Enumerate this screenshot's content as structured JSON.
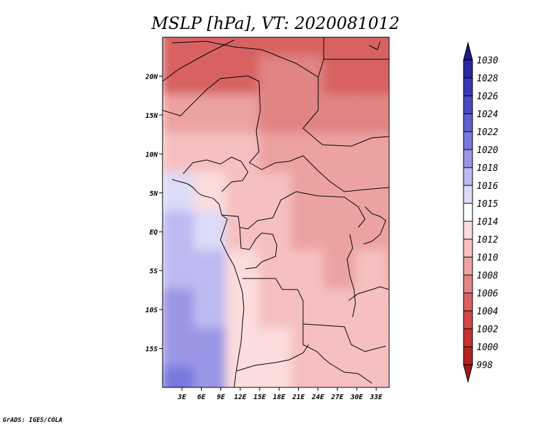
{
  "chart_data": {
    "type": "heatmap",
    "title": "MSLP [hPa], VT: 2020081012",
    "variable": "MSLP",
    "units": "hPa",
    "valid_time": "2020081012",
    "x_axis": {
      "range_deg": [
        0,
        35
      ],
      "ticks": [
        {
          "value": 3,
          "label": "3E"
        },
        {
          "value": 6,
          "label": "6E"
        },
        {
          "value": 9,
          "label": "9E"
        },
        {
          "value": 12,
          "label": "12E"
        },
        {
          "value": 15,
          "label": "15E"
        },
        {
          "value": 18,
          "label": "18E"
        },
        {
          "value": 21,
          "label": "21E"
        },
        {
          "value": 24,
          "label": "24E"
        },
        {
          "value": 27,
          "label": "27E"
        },
        {
          "value": 30,
          "label": "30E"
        },
        {
          "value": 33,
          "label": "33E"
        }
      ]
    },
    "y_axis": {
      "range_deg": [
        -20,
        25
      ],
      "ticks": [
        {
          "value": 20,
          "label": "20N"
        },
        {
          "value": 15,
          "label": "15N"
        },
        {
          "value": 10,
          "label": "10N"
        },
        {
          "value": 5,
          "label": "5N"
        },
        {
          "value": 0,
          "label": "EQ"
        },
        {
          "value": -5,
          "label": "5S"
        },
        {
          "value": -10,
          "label": "10S"
        },
        {
          "value": -15,
          "label": "15S"
        }
      ]
    },
    "colorbar": {
      "labels": [
        "1030",
        "1028",
        "1026",
        "1024",
        "1022",
        "1020",
        "1018",
        "1016",
        "1015",
        "1014",
        "1012",
        "1010",
        "1008",
        "1006",
        "1004",
        "1002",
        "1000",
        "998"
      ],
      "colors": [
        "#1a1a8a",
        "#2828a0",
        "#3838b4",
        "#4a4ac4",
        "#6060d0",
        "#7878dc",
        "#9a96e6",
        "#bcbaf0",
        "#dcdcf8",
        "#ffffff",
        "#fcdcdc",
        "#f6c0c0",
        "#eca2a2",
        "#e08484",
        "#d86262",
        "#d24848",
        "#c83232",
        "#b42222",
        "#a01818"
      ]
    },
    "field": {
      "lon_min": 0,
      "lon_max": 35,
      "lat_min": -20,
      "lat_max": 25,
      "dlon": 5,
      "dlat": 5,
      "lats": [
        25,
        20,
        15,
        10,
        5,
        0,
        -5,
        -10,
        -15,
        -20
      ],
      "values_hpa": [
        [
          1004.0,
          1004.5,
          1005.0,
          1005.5,
          1005.5,
          1005.0,
          1004.5,
          1004.0
        ],
        [
          1005.5,
          1005.0,
          1004.5,
          1006.0,
          1006.5,
          1005.0,
          1004.5,
          1005.5
        ],
        [
          1009.0,
          1008.0,
          1008.5,
          1007.5,
          1007.0,
          1007.0,
          1007.0,
          1007.5
        ],
        [
          1011.5,
          1011.5,
          1010.0,
          1009.5,
          1008.5,
          1008.0,
          1008.0,
          1008.5
        ],
        [
          1015.0,
          1013.0,
          1011.0,
          1010.0,
          1009.5,
          1009.0,
          1009.0,
          1009.5
        ],
        [
          1016.0,
          1015.5,
          1011.5,
          1010.5,
          1009.5,
          1009.5,
          1009.5,
          1009.0
        ],
        [
          1017.0,
          1016.0,
          1012.5,
          1011.0,
          1010.0,
          1009.5,
          1010.0,
          1009.5
        ],
        [
          1018.0,
          1017.0,
          1013.5,
          1011.0,
          1011.0,
          1010.5,
          1010.0,
          1010.5
        ],
        [
          1019.5,
          1018.0,
          1012.5,
          1012.0,
          1011.5,
          1011.0,
          1011.0,
          1010.5
        ],
        [
          1020.5,
          1019.0,
          1012.0,
          1012.5,
          1011.5,
          1011.5,
          1011.0,
          1011.5
        ]
      ]
    }
  },
  "credit": "GrADS: IGES/COLA"
}
